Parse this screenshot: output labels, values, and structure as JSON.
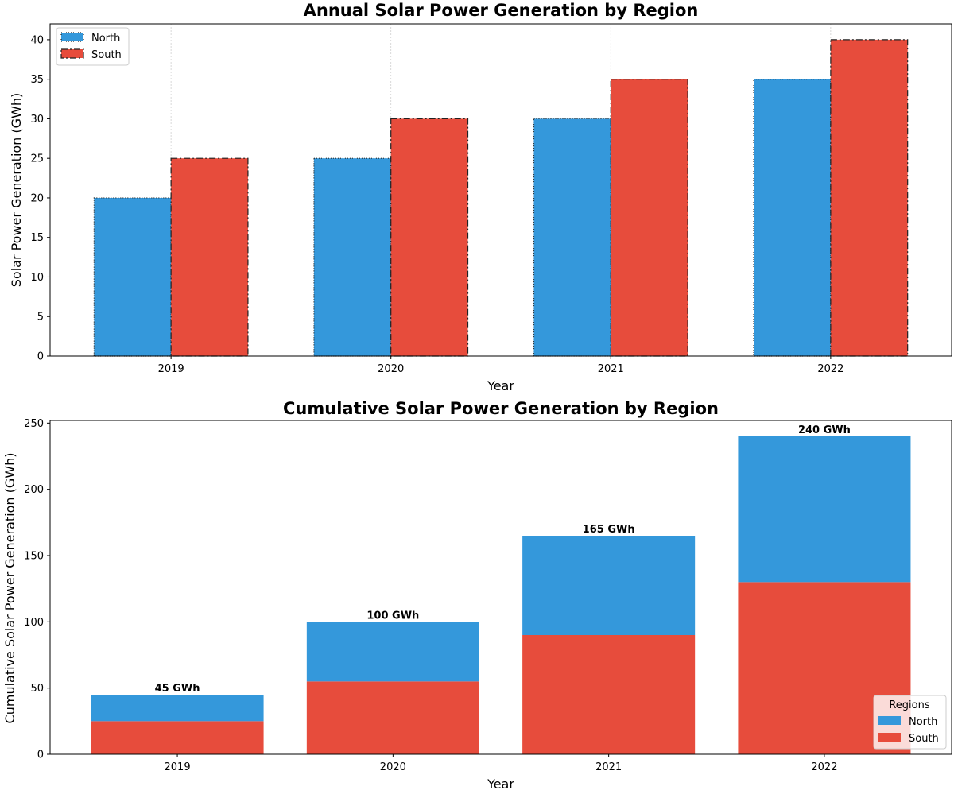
{
  "chart_data": [
    {
      "type": "bar",
      "title": "Annual Solar Power Generation by Region",
      "xlabel": "Year",
      "ylabel": "Solar Power Generation (GWh)",
      "categories": [
        "2019",
        "2020",
        "2021",
        "2022"
      ],
      "series": [
        {
          "name": "North",
          "values": [
            20,
            25,
            30,
            35
          ],
          "color": "#3498db"
        },
        {
          "name": "South",
          "values": [
            25,
            30,
            35,
            40
          ],
          "color": "#e74c3c"
        }
      ],
      "ylim": [
        0,
        42
      ],
      "yticks": [
        0,
        5,
        10,
        15,
        20,
        25,
        30,
        35,
        40
      ],
      "grid": "x",
      "legend": {
        "placement": "upper-left",
        "title": ""
      }
    },
    {
      "type": "bar",
      "stacked": true,
      "title": "Cumulative Solar Power Generation by Region",
      "xlabel": "Year",
      "ylabel": "Cumulative Solar Power Generation (GWh)",
      "categories": [
        "2019",
        "2020",
        "2021",
        "2022"
      ],
      "series": [
        {
          "name": "South",
          "values": [
            25,
            55,
            90,
            130
          ],
          "color": "#e74c3c"
        },
        {
          "name": "North",
          "values": [
            20,
            45,
            75,
            110
          ],
          "color": "#3498db"
        }
      ],
      "totals": [
        45,
        100,
        165,
        240
      ],
      "total_labels": [
        "45 GWh",
        "100 GWh",
        "165 GWh",
        "240 GWh"
      ],
      "ylim": [
        0,
        252
      ],
      "yticks": [
        0,
        50,
        100,
        150,
        200,
        250
      ],
      "grid": "none",
      "legend": {
        "placement": "lower-right",
        "title": "Regions",
        "entries": [
          "North",
          "South"
        ]
      }
    }
  ]
}
